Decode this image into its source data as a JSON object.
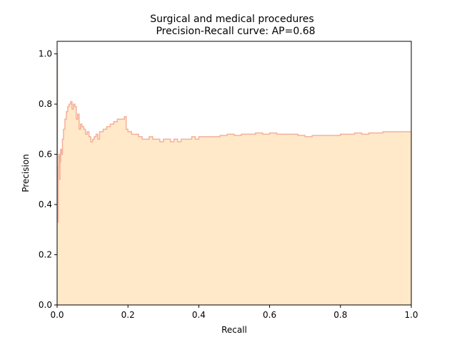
{
  "chart_data": {
    "type": "area",
    "title": "Surgical and medical procedures",
    "subtitle": "Precision-Recall curve: AP=0.68",
    "xlabel": "Recall",
    "ylabel": "Precision",
    "xlim": [
      0.0,
      1.0
    ],
    "ylim": [
      0.0,
      1.05
    ],
    "xticks": [
      "0.0",
      "0.2",
      "0.4",
      "0.6",
      "0.8",
      "1.0"
    ],
    "yticks": [
      "0.0",
      "0.2",
      "0.4",
      "0.6",
      "0.8",
      "1.0"
    ],
    "grid": false,
    "legend": "none",
    "fill_color": "#ffe9c9",
    "line_color": "#f4b09a",
    "series": [
      {
        "recall": [
          0.0,
          0.001,
          0.002,
          0.003,
          0.005,
          0.007,
          0.008,
          0.01,
          0.012,
          0.015,
          0.018,
          0.022,
          0.026,
          0.03,
          0.034,
          0.038,
          0.042,
          0.046,
          0.05,
          0.054,
          0.058,
          0.062,
          0.066,
          0.07,
          0.075,
          0.08,
          0.085,
          0.09,
          0.095,
          0.1,
          0.105,
          0.11,
          0.115,
          0.12,
          0.13,
          0.14,
          0.15,
          0.16,
          0.17,
          0.18,
          0.19,
          0.195,
          0.2,
          0.21,
          0.22,
          0.23,
          0.24,
          0.25,
          0.26,
          0.27,
          0.28,
          0.29,
          0.3,
          0.31,
          0.32,
          0.33,
          0.34,
          0.35,
          0.36,
          0.37,
          0.38,
          0.39,
          0.4,
          0.42,
          0.44,
          0.46,
          0.48,
          0.5,
          0.52,
          0.54,
          0.56,
          0.58,
          0.6,
          0.62,
          0.64,
          0.66,
          0.68,
          0.7,
          0.72,
          0.74,
          0.76,
          0.78,
          0.8,
          0.82,
          0.84,
          0.86,
          0.88,
          0.9,
          0.92,
          0.94,
          0.96,
          0.98,
          1.0
        ],
        "precision": [
          1.0,
          0.5,
          0.33,
          0.55,
          0.6,
          0.5,
          0.57,
          0.62,
          0.6,
          0.66,
          0.7,
          0.74,
          0.77,
          0.79,
          0.8,
          0.81,
          0.78,
          0.8,
          0.79,
          0.74,
          0.76,
          0.7,
          0.72,
          0.71,
          0.7,
          0.68,
          0.69,
          0.67,
          0.65,
          0.66,
          0.67,
          0.68,
          0.66,
          0.69,
          0.7,
          0.71,
          0.72,
          0.73,
          0.74,
          0.74,
          0.75,
          0.7,
          0.69,
          0.68,
          0.68,
          0.67,
          0.66,
          0.66,
          0.67,
          0.66,
          0.66,
          0.65,
          0.66,
          0.66,
          0.65,
          0.66,
          0.65,
          0.66,
          0.66,
          0.66,
          0.67,
          0.66,
          0.67,
          0.67,
          0.67,
          0.675,
          0.68,
          0.675,
          0.68,
          0.68,
          0.685,
          0.68,
          0.685,
          0.68,
          0.68,
          0.68,
          0.675,
          0.67,
          0.675,
          0.675,
          0.675,
          0.675,
          0.68,
          0.68,
          0.685,
          0.68,
          0.685,
          0.685,
          0.69,
          0.69,
          0.69,
          0.69,
          0.69
        ]
      }
    ]
  }
}
